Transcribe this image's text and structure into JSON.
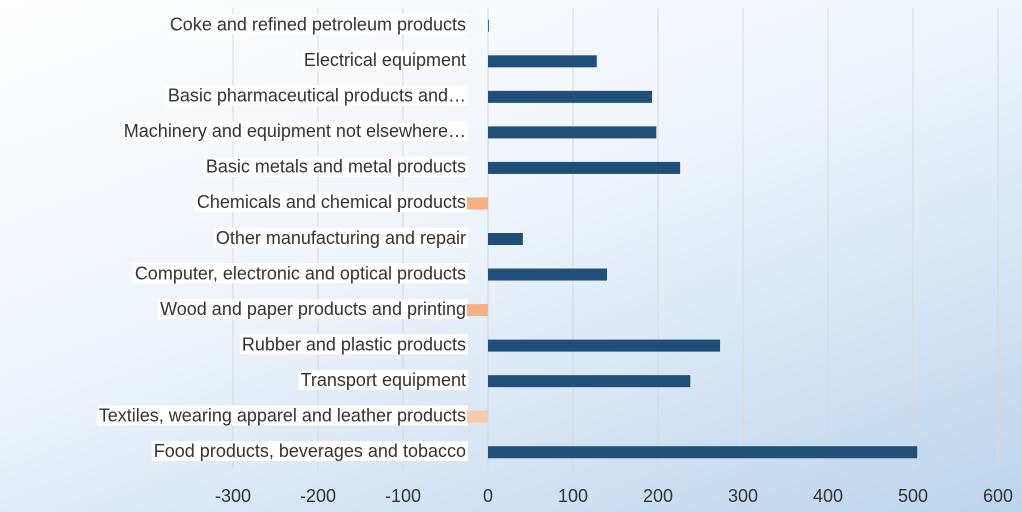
{
  "chart_data": {
    "type": "bar",
    "orientation": "horizontal",
    "categories": [
      "Coke and refined petroleum products",
      "Electrical equipment",
      "Basic pharmaceutical products and…",
      "Machinery and equipment not elsewhere…",
      "Basic metals and metal products",
      "Chemicals and chemical products",
      "Other manufacturing and repair",
      "Computer, electronic and optical products",
      "Wood and paper products and printing",
      "Rubber and plastic products",
      "Transport equipment",
      "Textiles, wearing apparel and leather products",
      "Food products, beverages and tobacco"
    ],
    "values": [
      1,
      128,
      193,
      198,
      226,
      -25,
      41,
      140,
      -25,
      273,
      238,
      -25,
      505
    ],
    "colors": [
      "#1f4e79",
      "#1f4e79",
      "#1f4e79",
      "#1f4e79",
      "#1f4e79",
      "#f4b183",
      "#1f4e79",
      "#1f4e79",
      "#f4b183",
      "#1f4e79",
      "#1f4e79",
      "#f8cbad",
      "#1f4e79"
    ],
    "xlim": [
      -300,
      600
    ],
    "xticks": [
      -300,
      -200,
      -100,
      0,
      100,
      200,
      300,
      400,
      500,
      600
    ],
    "grid": true
  }
}
